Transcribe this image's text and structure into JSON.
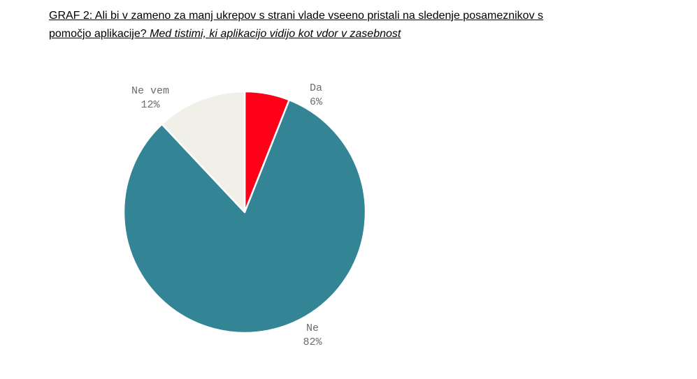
{
  "title": {
    "line1": "GRAF 2: Ali bi v zameno za manj ukrepov s strani vlade vseeno pristali na sledenje posameznikov s",
    "line2_plain": "pomočjo aplikacije? ",
    "line2_italic": "Med tistimi, ki aplikacijo vidijo kot vdor v zasebnost"
  },
  "chart_data": {
    "type": "pie",
    "start_angle_deg": 0,
    "direction": "clockwise",
    "slices": [
      {
        "label": "Da",
        "value": 6,
        "value_label": "6%",
        "color": "#ff0019"
      },
      {
        "label": "Ne",
        "value": 82,
        "value_label": "82%",
        "color": "#338495"
      },
      {
        "label": "Ne vem",
        "value": 12,
        "value_label": "12%",
        "color": "#f0efe8"
      }
    ]
  }
}
